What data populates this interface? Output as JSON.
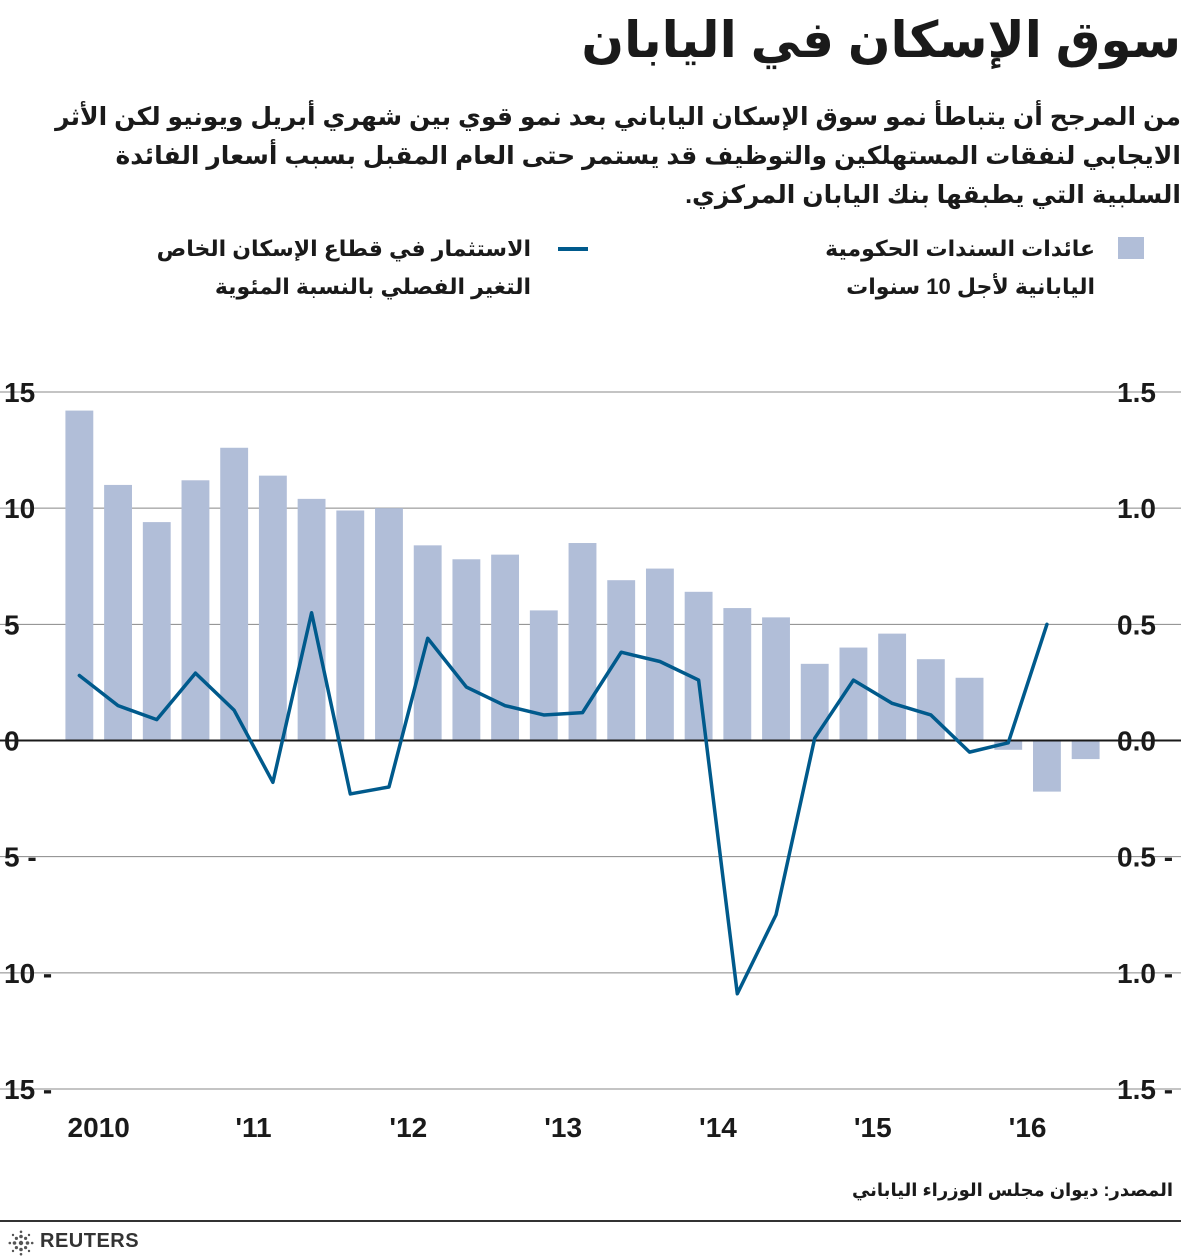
{
  "header": {
    "title": "سوق الإسكان في اليابان",
    "subtitle": "من المرجح أن يتباطأ نمو سوق الإسكان الياباني بعد نمو قوي بين شهري أبريل ويونيو لكن الأثر الايجابي لنفقات المستهلكين والتوظيف قد يستمر حتى العام المقبل بسبب أسعار الفائدة السلبية التي يطبقها بنك اليابان المركزي."
  },
  "legend": {
    "bars_line1": "عائدات السندات الحكومية",
    "bars_line2": "اليابانية لأجل 10 سنوات",
    "line_line1": "الاستثمار في قطاع الإسكان الخاص",
    "line_line2": "التغير الفصلي بالنسبة المئوية"
  },
  "footer": {
    "source": "المصدر: ديوان مجلس الوزراء الياباني",
    "brand": "REUTERS"
  },
  "colors": {
    "bars": "#b1bed8",
    "line": "#005a8c",
    "axis": "#1a1a1a",
    "grid": "#888888"
  },
  "chart_data": {
    "type": "bar",
    "grid": true,
    "left_axis": {
      "ylim": [
        -15,
        15
      ],
      "ticks": [
        15,
        10,
        5,
        0,
        -5,
        -10,
        -15
      ],
      "tick_labels": [
        "15",
        "10",
        "5",
        "0",
        "5 -",
        "10 -",
        "15 -"
      ]
    },
    "right_axis": {
      "ylim": [
        -1.5,
        1.5
      ],
      "ticks": [
        1.5,
        1.0,
        0.5,
        0.0,
        -0.5,
        -1.0,
        -1.5
      ],
      "tick_labels": [
        "1.5",
        "1.0",
        "0.5",
        "0.0",
        "0.5 -",
        "1.0 -",
        "1.5 -"
      ]
    },
    "x_tick_labels": [
      {
        "label": "2010",
        "index": 0.5
      },
      {
        "label": "'11",
        "index": 4.5
      },
      {
        "label": "'12",
        "index": 8.5
      },
      {
        "label": "'13",
        "index": 12.5
      },
      {
        "label": "'14",
        "index": 16.5
      },
      {
        "label": "'15",
        "index": 20.5
      },
      {
        "label": "'16",
        "index": 24.5
      }
    ],
    "series": [
      {
        "name": "عائدات السندات الحكومية اليابانية لأجل 10 سنوات",
        "type": "bar",
        "axis": "right",
        "values": [
          1.42,
          1.1,
          0.94,
          1.12,
          1.26,
          1.14,
          1.04,
          0.99,
          1.0,
          0.84,
          0.78,
          0.8,
          0.56,
          0.85,
          0.69,
          0.74,
          0.64,
          0.57,
          0.53,
          0.33,
          0.4,
          0.46,
          0.35,
          0.27,
          -0.04,
          -0.22,
          -0.08
        ]
      },
      {
        "name": "الاستثمار في قطاع الإسكان الخاص",
        "type": "line",
        "axis": "left",
        "values": [
          2.8,
          1.5,
          0.9,
          2.9,
          1.3,
          -1.8,
          5.5,
          -2.3,
          -2.0,
          4.4,
          2.3,
          1.5,
          1.1,
          1.2,
          3.8,
          3.4,
          2.6,
          -10.9,
          -7.5,
          0.1,
          2.6,
          1.6,
          1.1,
          -0.5,
          -0.1,
          5.0
        ]
      }
    ]
  }
}
